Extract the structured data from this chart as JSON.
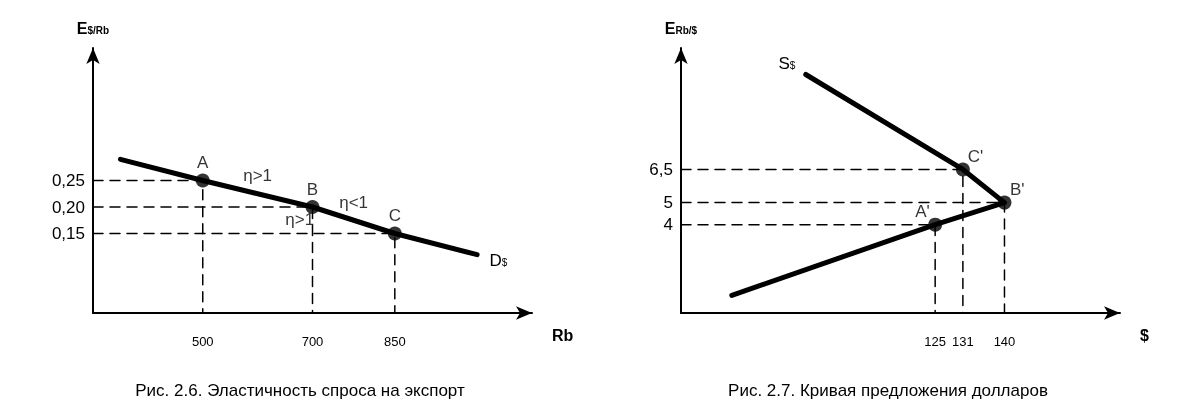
{
  "chart_data": [
    {
      "type": "line",
      "title": "Рис. 2.6. Эластичность спроса на экспорт",
      "xlabel": "Rb",
      "ylabel": "E$_{$/Rb}$",
      "xlim": [
        300,
        1100
      ],
      "ylim": [
        0,
        0.5
      ],
      "xticks": [
        500,
        700,
        850
      ],
      "yticks": [
        {
          "value": 0.15,
          "label": "0,15"
        },
        {
          "value": 0.2,
          "label": "0,20"
        },
        {
          "value": 0.25,
          "label": "0,25"
        }
      ],
      "series": [
        {
          "color": "#000000",
          "line_style": "dashed",
          "x": [
            300,
            500,
            500
          ],
          "values": [
            0.25,
            0.25,
            0
          ]
        },
        {
          "color": "#000000",
          "line_style": "dashed",
          "x": [
            300,
            700,
            700
          ],
          "values": [
            0.2,
            0.2,
            0
          ]
        },
        {
          "color": "#000000",
          "line_style": "dashed",
          "x": [
            300,
            850,
            850
          ],
          "values": [
            0.15,
            0.15,
            0
          ]
        },
        {
          "name": "D$_{$}$",
          "color": "#000000",
          "line_style": "solid",
          "marker": "none",
          "x": [
            350,
            500,
            700,
            850,
            1000
          ],
          "values": [
            0.29,
            0.25,
            0.2,
            0.15,
            0.11
          ]
        },
        {
          "type": "scatter",
          "color": "#000000",
          "marker": "circle",
          "x": [
            500,
            700,
            850
          ],
          "values": [
            0.25,
            0.2,
            0.15
          ]
        }
      ],
      "annotations": [
        {
          "text": "A",
          "x": 500,
          "y": 0.25
        },
        {
          "text": "B",
          "x": 700,
          "y": 0.2
        },
        {
          "text": "C",
          "x": 850,
          "y": 0.15
        },
        {
          "text": "η>1",
          "x": 600,
          "y": 0.225
        },
        {
          "text": "η>1",
          "x": 700,
          "y": 0.2
        },
        {
          "text": "η<1",
          "x": 775,
          "y": 0.175
        }
      ]
    },
    {
      "type": "line",
      "title": "Рис. 2.7. Кривая предложения долларов",
      "xlabel": "$",
      "ylabel": "E$_{Rb/$}$",
      "xlim": [
        70,
        165
      ],
      "ylim": [
        0,
        12
      ],
      "xticks": [
        125,
        131,
        140
      ],
      "yticks": [
        4,
        5,
        {
          "value": 6.5,
          "label": "6,5"
        }
      ],
      "series": [
        {
          "color": "#000000",
          "line_style": "dashed",
          "x": [
            70,
            131,
            131
          ],
          "values": [
            6.5,
            6.5,
            0
          ]
        },
        {
          "color": "#000000",
          "line_style": "dashed",
          "x": [
            70,
            140,
            140
          ],
          "values": [
            5,
            5,
            0
          ]
        },
        {
          "color": "#000000",
          "line_style": "dashed",
          "x": [
            70,
            125,
            125
          ],
          "values": [
            4,
            4,
            0
          ]
        },
        {
          "name": "S$_{$}$",
          "color": "#000000",
          "line_style": "solid",
          "marker": "none",
          "x": [
            81,
            125,
            140,
            131,
            97
          ],
          "values": [
            0.8,
            4,
            5,
            6.5,
            10.8
          ]
        },
        {
          "type": "scatter",
          "color": "#000000",
          "marker": "circle",
          "x": [
            131,
            140,
            125
          ],
          "values": [
            6.5,
            5,
            4
          ]
        }
      ],
      "annotations": [
        {
          "text": "C'",
          "x": 131,
          "y": 6.5
        },
        {
          "text": "B'",
          "x": 140,
          "y": 5
        },
        {
          "text": "A'",
          "x": 125,
          "y": 4
        }
      ]
    }
  ]
}
